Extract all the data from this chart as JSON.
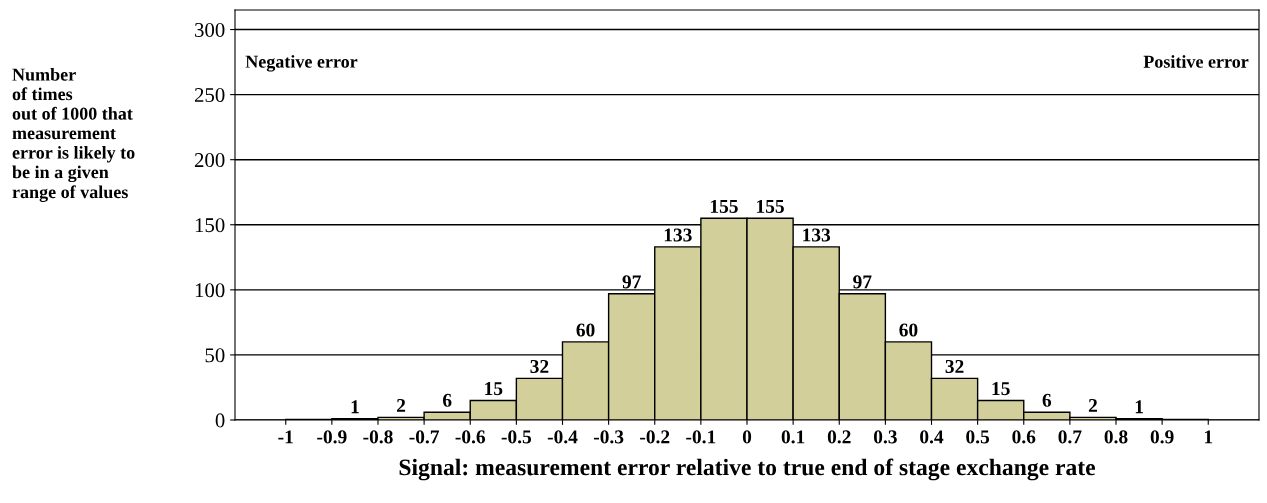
{
  "chart_data": {
    "type": "histogram",
    "xlabel": "Signal: measurement error relative to true end of stage exchange rate",
    "ylabel": "Number\nof times\nout of 1000 that\nmeasurement\nerror is likely to\nbe in a given\nrange of values",
    "annotations": [
      "Negative error",
      "Positive error"
    ],
    "bins": [
      -1.0,
      -0.9,
      -0.8,
      -0.7,
      -0.6,
      -0.5,
      -0.4,
      -0.3,
      -0.2,
      -0.1,
      0,
      0.1,
      0.2,
      0.3,
      0.4,
      0.5,
      0.6,
      0.7,
      0.8,
      0.9,
      1.0
    ],
    "values": [
      0.4,
      1,
      2,
      6,
      15,
      32,
      60,
      97,
      133,
      155,
      155,
      133,
      97,
      60,
      32,
      15,
      6,
      2,
      1,
      0.4
    ],
    "value_labels": [
      null,
      "1",
      "2",
      "6",
      "15",
      "32",
      "60",
      "97",
      "133",
      "155",
      "155",
      "133",
      "97",
      "60",
      "32",
      "15",
      "6",
      "2",
      "1",
      null
    ],
    "color": "#d3cf9a",
    "xlim": [
      -1.11,
      1.11
    ],
    "xticks": [
      -1,
      -0.9,
      -0.8,
      -0.7,
      -0.6,
      -0.5,
      -0.4,
      -0.3,
      -0.2,
      -0.1,
      0,
      0.1,
      0.2,
      0.3,
      0.4,
      0.5,
      0.6,
      0.7,
      0.8,
      0.9,
      1
    ],
    "ylim": [
      0,
      315
    ],
    "yticks": [
      0,
      50,
      100,
      150,
      200,
      250,
      300
    ],
    "grid": "y"
  }
}
